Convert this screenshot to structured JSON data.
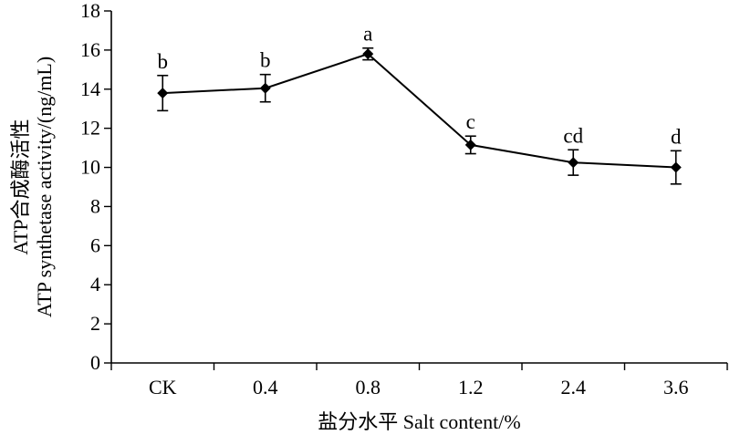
{
  "chart_data": {
    "type": "line",
    "categories": [
      "CK",
      "0.4",
      "0.8",
      "1.2",
      "2.4",
      "3.6"
    ],
    "series": [
      {
        "values": [
          13.8,
          14.05,
          15.8,
          11.15,
          10.25,
          10.0
        ],
        "error": [
          0.9,
          0.7,
          0.3,
          0.45,
          0.65,
          0.85
        ],
        "labels": [
          "b",
          "b",
          "a",
          "c",
          "cd",
          "d"
        ]
      }
    ],
    "title": "",
    "xlabel": "盐分水平 Salt content/%",
    "ylabel_line1": "ATP合成酶活性",
    "ylabel_line2": "ATP synthetase activity/(ng/mL)",
    "ylim": [
      0,
      18
    ],
    "yticks": [
      0,
      2,
      4,
      6,
      8,
      10,
      12,
      14,
      16,
      18
    ],
    "grid": false,
    "marker": "diamond",
    "colors": {
      "line": "#000000",
      "background": "#ffffff"
    }
  }
}
